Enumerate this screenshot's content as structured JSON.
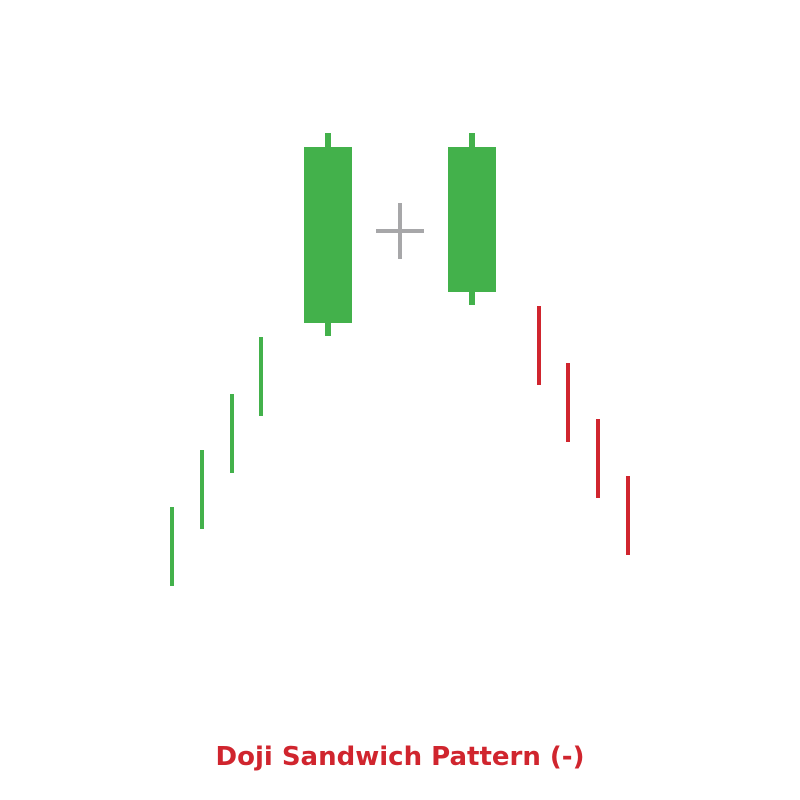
{
  "chart_data": {
    "type": "candlestick",
    "title": "Doji Sandwich Pattern (-)",
    "axes_visible": false,
    "grid": false,
    "colors": {
      "up": "#43b14b",
      "down": "#d0252e",
      "doji": "#a7a7a9",
      "title": "#d0252e"
    },
    "trend_lines": [
      {
        "kind": "up",
        "high": 18.6,
        "low": 2.8
      },
      {
        "kind": "up",
        "high": 30.0,
        "low": 14.2
      },
      {
        "kind": "up",
        "high": 41.2,
        "low": 25.4
      },
      {
        "kind": "up",
        "high": 52.6,
        "low": 36.8
      },
      {
        "kind": "down",
        "high": 58.8,
        "low": 43.0
      },
      {
        "kind": "down",
        "high": 47.4,
        "low": 31.6
      },
      {
        "kind": "down",
        "high": 36.2,
        "low": 20.4
      },
      {
        "kind": "down",
        "high": 24.8,
        "low": 9.0
      }
    ],
    "candles": [
      {
        "kind": "up",
        "open": 55.4,
        "high": 93.4,
        "low": 52.8,
        "close": 90.6
      },
      {
        "kind": "doji",
        "open": 73.8,
        "high": 79.4,
        "low": 68.2,
        "close": 73.8
      },
      {
        "kind": "up",
        "open": 61.6,
        "high": 93.4,
        "low": 59.0,
        "close": 90.6
      }
    ]
  }
}
